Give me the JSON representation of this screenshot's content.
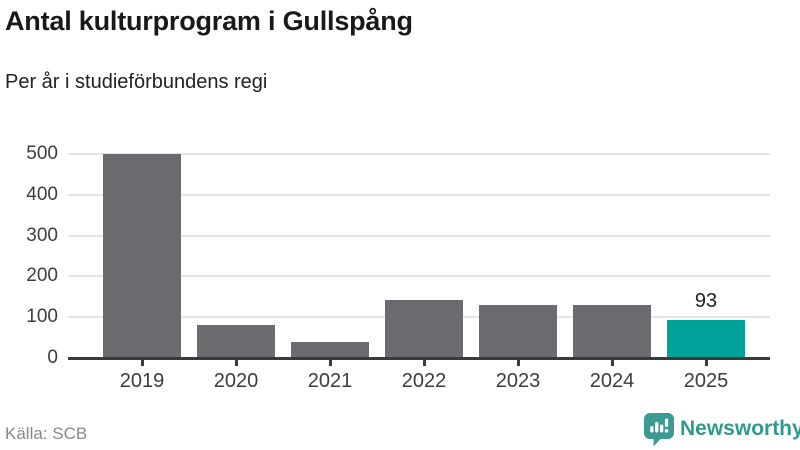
{
  "header": {
    "title": "Antal kulturprogram i Gullspång",
    "subtitle": "Per år i studieförbundens regi"
  },
  "chart_data": {
    "type": "bar",
    "title": "Antal kulturprogram i Gullspång",
    "subtitle": "Per år i studieförbundens regi",
    "categories": [
      "2019",
      "2020",
      "2021",
      "2022",
      "2023",
      "2024",
      "2025"
    ],
    "values": [
      500,
      80,
      39,
      143,
      130,
      130,
      93
    ],
    "ylim": [
      0,
      500
    ],
    "yticks": [
      0,
      100,
      200,
      300,
      400,
      500
    ],
    "grid": true,
    "xlabel": "",
    "ylabel": "",
    "bar_color": "#6b6a6f",
    "highlight_index": 6,
    "highlight_color": "#00a299",
    "annotations": [
      {
        "index": 6,
        "text": "93"
      }
    ]
  },
  "footer": {
    "source": "Källa: SCB",
    "brand": "Newsworthy"
  },
  "colors": {
    "accent": "#00a299",
    "bar": "#6b6a6f",
    "brand": "#2f9a8e",
    "brand_icon": "#3c9a93",
    "axis": "#3a3a3a",
    "grid": "#e4e4e4"
  }
}
